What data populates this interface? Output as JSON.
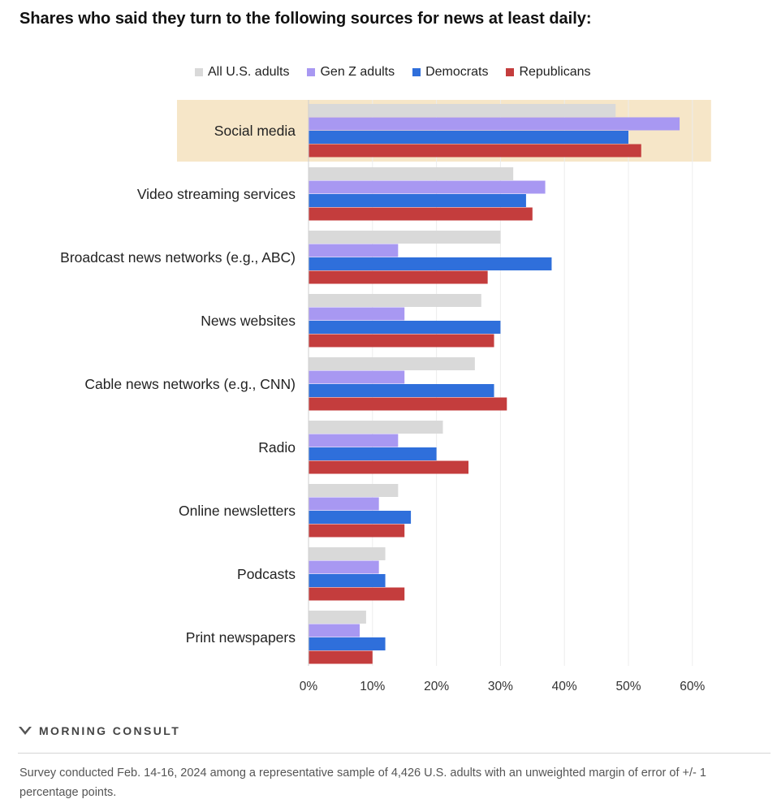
{
  "chart_data": {
    "type": "bar",
    "orientation": "horizontal",
    "title": "Shares who said they turn to the following sources for news at least daily:",
    "categories": [
      "Social media",
      "Video streaming services",
      "Broadcast news networks (e.g., ABC)",
      "News websites",
      "Cable news networks (e.g., CNN)",
      "Radio",
      "Online newsletters",
      "Podcasts",
      "Print newspapers"
    ],
    "highlighted_category": "Social media",
    "highlight_color": "#f6e6c8",
    "series": [
      {
        "name": "All U.S. adults",
        "color": "#d9d9d9",
        "values": [
          48,
          32,
          30,
          27,
          26,
          21,
          14,
          12,
          9
        ]
      },
      {
        "name": "Gen Z adults",
        "color": "#a898f2",
        "values": [
          58,
          37,
          14,
          15,
          15,
          14,
          11,
          11,
          8
        ]
      },
      {
        "name": "Democrats",
        "color": "#2f6fdb",
        "values": [
          50,
          34,
          38,
          30,
          29,
          20,
          16,
          12,
          12
        ]
      },
      {
        "name": "Republicans",
        "color": "#c43d3d",
        "values": [
          52,
          35,
          28,
          29,
          31,
          25,
          15,
          15,
          10
        ]
      }
    ],
    "xlim": [
      0,
      60
    ],
    "xticks": [
      0,
      10,
      20,
      30,
      40,
      50,
      60
    ],
    "xtick_labels": [
      "0%",
      "10%",
      "20%",
      "30%",
      "40%",
      "50%",
      "60%"
    ],
    "legend": "top",
    "grid": true
  },
  "brand": {
    "name": "MORNING CONSULT"
  },
  "footnote": "Survey conducted Feb. 14-16, 2024 among a representative sample of 4,426 U.S. adults with an unweighted margin of error of +/- 1 percentage points."
}
